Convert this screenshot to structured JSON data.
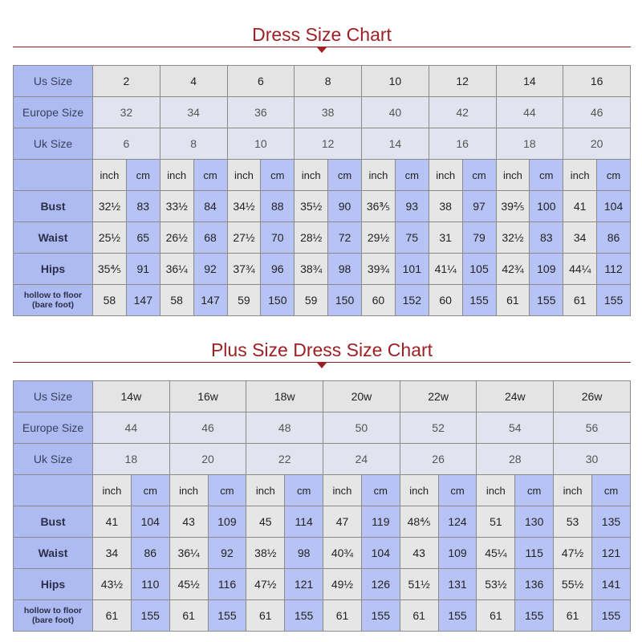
{
  "tables": [
    {
      "title": "Dress Size Chart",
      "size_rows": [
        {
          "label": "Us Size",
          "values": [
            "2",
            "4",
            "6",
            "8",
            "10",
            "12",
            "14",
            "16"
          ]
        },
        {
          "label": "Europe Size",
          "values": [
            "32",
            "34",
            "36",
            "38",
            "40",
            "42",
            "44",
            "46"
          ]
        },
        {
          "label": "Uk Size",
          "values": [
            "6",
            "8",
            "10",
            "12",
            "14",
            "16",
            "18",
            "20"
          ]
        }
      ],
      "units": [
        "inch",
        "cm"
      ],
      "measure_rows": [
        {
          "label": [
            "Bust"
          ],
          "values": [
            [
              "32½",
              "83"
            ],
            [
              "33½",
              "84"
            ],
            [
              "34½",
              "88"
            ],
            [
              "35½",
              "90"
            ],
            [
              "36⅗",
              "93"
            ],
            [
              "38",
              "97"
            ],
            [
              "39⅖",
              "100"
            ],
            [
              "41",
              "104"
            ]
          ]
        },
        {
          "label": [
            "Waist"
          ],
          "values": [
            [
              "25½",
              "65"
            ],
            [
              "26½",
              "68"
            ],
            [
              "27½",
              "70"
            ],
            [
              "28½",
              "72"
            ],
            [
              "29½",
              "75"
            ],
            [
              "31",
              "79"
            ],
            [
              "32½",
              "83"
            ],
            [
              "34",
              "86"
            ]
          ]
        },
        {
          "label": [
            "Hips"
          ],
          "values": [
            [
              "35⅘",
              "91"
            ],
            [
              "36¼",
              "92"
            ],
            [
              "37¾",
              "96"
            ],
            [
              "38¾",
              "98"
            ],
            [
              "39¾",
              "101"
            ],
            [
              "41¼",
              "105"
            ],
            [
              "42¾",
              "109"
            ],
            [
              "44¼",
              "112"
            ]
          ]
        },
        {
          "label": [
            "hollow to floor",
            "(bare foot)"
          ],
          "values": [
            [
              "58",
              "147"
            ],
            [
              "58",
              "147"
            ],
            [
              "59",
              "150"
            ],
            [
              "59",
              "150"
            ],
            [
              "60",
              "152"
            ],
            [
              "60",
              "155"
            ],
            [
              "61",
              "155"
            ],
            [
              "61",
              "155"
            ]
          ]
        }
      ]
    },
    {
      "title": "Plus Size Dress Size Chart",
      "size_rows": [
        {
          "label": "Us Size",
          "values": [
            "14w",
            "16w",
            "18w",
            "20w",
            "22w",
            "24w",
            "26w"
          ]
        },
        {
          "label": "Europe Size",
          "values": [
            "44",
            "46",
            "48",
            "50",
            "52",
            "54",
            "56"
          ]
        },
        {
          "label": "Uk Size",
          "values": [
            "18",
            "20",
            "22",
            "24",
            "26",
            "28",
            "30"
          ]
        }
      ],
      "units": [
        "inch",
        "cm"
      ],
      "measure_rows": [
        {
          "label": [
            "Bust"
          ],
          "values": [
            [
              "41",
              "104"
            ],
            [
              "43",
              "109"
            ],
            [
              "45",
              "114"
            ],
            [
              "47",
              "119"
            ],
            [
              "48⅘",
              "124"
            ],
            [
              "51",
              "130"
            ],
            [
              "53",
              "135"
            ]
          ]
        },
        {
          "label": [
            "Waist"
          ],
          "values": [
            [
              "34",
              "86"
            ],
            [
              "36¼",
              "92"
            ],
            [
              "38½",
              "98"
            ],
            [
              "40¾",
              "104"
            ],
            [
              "43",
              "109"
            ],
            [
              "45¼",
              "115"
            ],
            [
              "47½",
              "121"
            ]
          ]
        },
        {
          "label": [
            "Hips"
          ],
          "values": [
            [
              "43½",
              "110"
            ],
            [
              "45½",
              "116"
            ],
            [
              "47½",
              "121"
            ],
            [
              "49½",
              "126"
            ],
            [
              "51½",
              "131"
            ],
            [
              "53½",
              "136"
            ],
            [
              "55½",
              "141"
            ]
          ]
        },
        {
          "label": [
            "hollow to floor",
            "(bare foot)"
          ],
          "values": [
            [
              "61",
              "155"
            ],
            [
              "61",
              "155"
            ],
            [
              "61",
              "155"
            ],
            [
              "61",
              "155"
            ],
            [
              "61",
              "155"
            ],
            [
              "61",
              "155"
            ],
            [
              "61",
              "155"
            ]
          ]
        }
      ]
    }
  ]
}
